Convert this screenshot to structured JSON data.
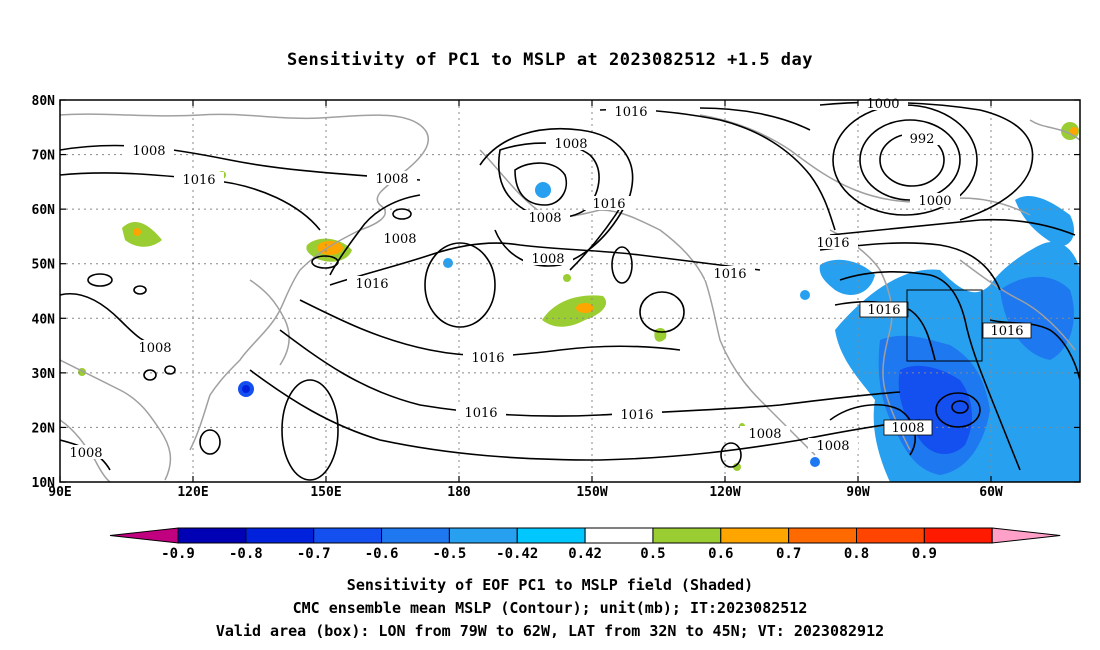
{
  "title": "Sensitivity of PC1 to MSLP at 2023082512 +1.5 day",
  "map": {
    "lon_ticks": [
      "90E",
      "120E",
      "150E",
      "180",
      "150W",
      "120W",
      "90W",
      "60W"
    ],
    "lat_ticks": [
      "80N",
      "70N",
      "60N",
      "50N",
      "40N",
      "30N",
      "20N",
      "10N"
    ],
    "contour_labels": [
      "1016",
      "1008",
      "1000",
      "992",
      "1008",
      "1016",
      "1008",
      "1016",
      "1008",
      "1016",
      "1016",
      "1000",
      "1008",
      "1016",
      "1008",
      "1016",
      "1016",
      "1016",
      "1016",
      "1008",
      "1016",
      "1016",
      "1008",
      "1008",
      "1008",
      "1008"
    ],
    "box": {
      "lon_west": "79W",
      "lon_east": "62W",
      "lat_south": "32N",
      "lat_north": "45N"
    }
  },
  "colorbar": {
    "labels": [
      "-0.9",
      "-0.8",
      "-0.7",
      "-0.6",
      "-0.5",
      "-0.42",
      "0.42",
      "0.5",
      "0.6",
      "0.7",
      "0.8",
      "0.9"
    ],
    "colors": [
      "#c0007f",
      "#0000b4",
      "#0022dc",
      "#1450f0",
      "#1e78f0",
      "#28a0f0",
      "#00c8ff",
      "#ffffff",
      "#9acd32",
      "#ffa500",
      "#ff6a00",
      "#ff4500",
      "#ff1a00",
      "#ffa0c8"
    ]
  },
  "captions": [
    "Sensitivity of EOF PC1 to MSLP field (Shaded)",
    "CMC ensemble mean MSLP (Contour); unit(mb); IT:2023082512",
    "Valid area (box): LON from 79W to 62W, LAT from 32N to 45N; VT: 2023082912"
  ],
  "colors": {
    "contour": "#000000",
    "coast": "#a0a0a0",
    "grid": "#888888"
  }
}
